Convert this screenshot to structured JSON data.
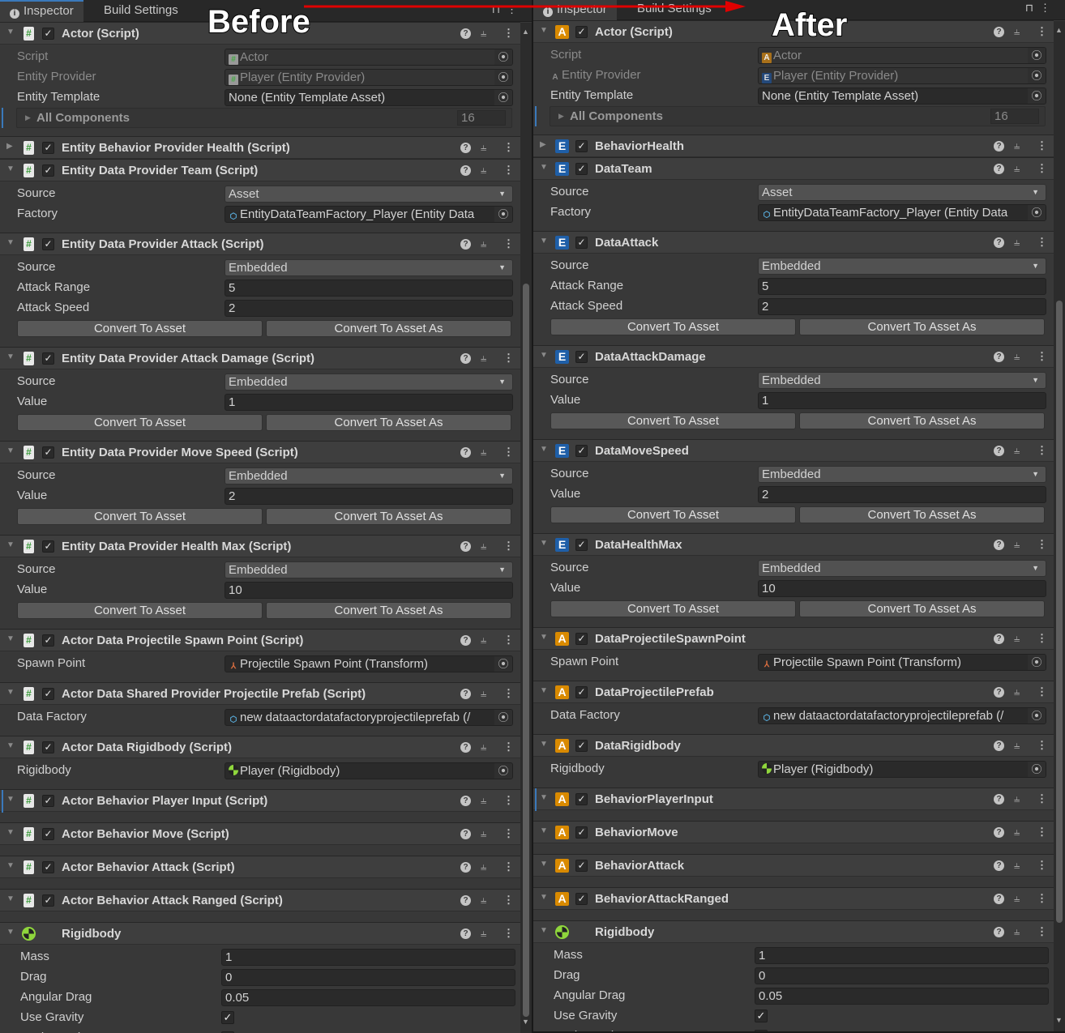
{
  "overlay": {
    "before": "Before",
    "after": "After",
    "arrow_color": "#e00000"
  },
  "panels": [
    {
      "tabs": [
        "Inspector",
        "Build Settings"
      ],
      "components": [
        {
          "title": "Actor (Script)",
          "icon": "script-icon",
          "expanded": true,
          "enabled": true,
          "rows": [
            {
              "type": "object",
              "label": "Script",
              "value": "Actor",
              "icon": "script-icon",
              "disabled": true
            },
            {
              "type": "object",
              "label": "Entity Provider",
              "value": "Player (Entity Provider)",
              "icon": "script-icon",
              "disabled": true
            },
            {
              "type": "object",
              "label": "Entity Template",
              "value": "None (Entity Template Asset)"
            },
            {
              "type": "foldout",
              "label": "All Components",
              "value": "16"
            }
          ]
        },
        {
          "title": "Entity Behavior Provider Health (Script)",
          "icon": "script-icon",
          "expanded": false,
          "enabled": true,
          "rows": []
        },
        {
          "title": "Entity Data Provider Team (Script)",
          "icon": "script-icon",
          "expanded": true,
          "enabled": true,
          "rows": [
            {
              "type": "dropdown",
              "label": "Source",
              "value": "Asset"
            },
            {
              "type": "object",
              "label": "Factory",
              "value": "EntityDataTeamFactory_Player (Entity Data",
              "icon": "prefab-icon"
            }
          ]
        },
        {
          "title": "Entity Data Provider Attack (Script)",
          "icon": "script-icon",
          "expanded": true,
          "enabled": true,
          "rows": [
            {
              "type": "dropdown",
              "label": "Source",
              "value": "Embedded"
            },
            {
              "type": "text",
              "label": "Attack Range",
              "value": "5"
            },
            {
              "type": "text",
              "label": "Attack Speed",
              "value": "2"
            },
            {
              "type": "buttons",
              "value": [
                "Convert To Asset",
                "Convert To Asset As"
              ]
            }
          ]
        },
        {
          "title": "Entity Data Provider Attack Damage (Script)",
          "icon": "script-icon",
          "expanded": true,
          "enabled": true,
          "rows": [
            {
              "type": "dropdown",
              "label": "Source",
              "value": "Embedded"
            },
            {
              "type": "text",
              "label": "Value",
              "value": "1"
            },
            {
              "type": "buttons",
              "value": [
                "Convert To Asset",
                "Convert To Asset As"
              ]
            }
          ]
        },
        {
          "title": "Entity Data Provider Move Speed (Script)",
          "icon": "script-icon",
          "expanded": true,
          "enabled": true,
          "rows": [
            {
              "type": "dropdown",
              "label": "Source",
              "value": "Embedded"
            },
            {
              "type": "text",
              "label": "Value",
              "value": "2"
            },
            {
              "type": "buttons",
              "value": [
                "Convert To Asset",
                "Convert To Asset As"
              ]
            }
          ]
        },
        {
          "title": "Entity Data Provider Health Max (Script)",
          "icon": "script-icon",
          "expanded": true,
          "enabled": true,
          "rows": [
            {
              "type": "dropdown",
              "label": "Source",
              "value": "Embedded"
            },
            {
              "type": "text",
              "label": "Value",
              "value": "10"
            },
            {
              "type": "buttons",
              "value": [
                "Convert To Asset",
                "Convert To Asset As"
              ]
            }
          ]
        },
        {
          "title": "Actor Data Projectile Spawn Point (Script)",
          "icon": "script-icon",
          "expanded": true,
          "enabled": true,
          "rows": [
            {
              "type": "object",
              "label": "Spawn Point",
              "value": "Projectile Spawn Point (Transform)",
              "icon": "transform-icon"
            }
          ]
        },
        {
          "title": "Actor Data Shared Provider Projectile Prefab (Script)",
          "icon": "script-icon",
          "expanded": true,
          "enabled": true,
          "rows": [
            {
              "type": "object",
              "label": "Data Factory",
              "value": "new dataactordatafactoryprojectileprefab (/",
              "icon": "prefab-icon"
            }
          ]
        },
        {
          "title": "Actor Data Rigidbody (Script)",
          "icon": "script-icon",
          "expanded": true,
          "enabled": true,
          "rows": [
            {
              "type": "object",
              "label": "Rigidbody",
              "value": "Player (Rigidbody)",
              "icon": "rigidbody-icon"
            }
          ]
        },
        {
          "title": "Actor Behavior Player Input (Script)",
          "icon": "script-icon",
          "expanded": true,
          "enabled": true,
          "selected": true,
          "rows": []
        },
        {
          "title": "Actor Behavior Move (Script)",
          "icon": "script-icon",
          "expanded": true,
          "enabled": true,
          "rows": []
        },
        {
          "title": "Actor Behavior Attack (Script)",
          "icon": "script-icon",
          "expanded": true,
          "enabled": true,
          "rows": []
        },
        {
          "title": "Actor Behavior Attack Ranged (Script)",
          "icon": "script-icon",
          "expanded": true,
          "enabled": true,
          "rows": []
        },
        {
          "title": "Rigidbody",
          "icon": "rigidbody-icon",
          "expanded": true,
          "rows": [
            {
              "type": "text",
              "label": "Mass",
              "value": "1"
            },
            {
              "type": "text",
              "label": "Drag",
              "value": "0"
            },
            {
              "type": "text",
              "label": "Angular Drag",
              "value": "0.05"
            },
            {
              "type": "checkbox",
              "label": "Use Gravity",
              "value": true
            },
            {
              "type": "checkbox",
              "label": "Is Kinematic",
              "value": false
            }
          ]
        }
      ]
    },
    {
      "tabs": [
        "Inspector",
        "Build Settings"
      ],
      "components": [
        {
          "title": "Actor (Script)",
          "icon": "actor-a-icon",
          "expanded": true,
          "enabled": true,
          "rows": [
            {
              "type": "object",
              "label": "Script",
              "value": "Actor",
              "icon": "actor-a-icon",
              "disabled": true
            },
            {
              "type": "object",
              "label": "Entity Provider",
              "label_icon": "actor-a-icon",
              "value": "Player (Entity Provider)",
              "icon": "entity-e-icon",
              "disabled": true
            },
            {
              "type": "object",
              "label": "Entity Template",
              "value": "None (Entity Template Asset)"
            },
            {
              "type": "foldout",
              "label": "All Components",
              "value": "16"
            }
          ]
        },
        {
          "title": "BehaviorHealth",
          "icon": "entity-e-icon",
          "expanded": false,
          "enabled": true,
          "rows": []
        },
        {
          "title": "DataTeam",
          "icon": "entity-e-icon",
          "expanded": true,
          "enabled": true,
          "rows": [
            {
              "type": "dropdown",
              "label": "Source",
              "value": "Asset"
            },
            {
              "type": "object",
              "label": "Factory",
              "value": "EntityDataTeamFactory_Player (Entity Data",
              "icon": "prefab-icon"
            }
          ]
        },
        {
          "title": "DataAttack",
          "icon": "entity-e-icon",
          "expanded": true,
          "enabled": true,
          "rows": [
            {
              "type": "dropdown",
              "label": "Source",
              "value": "Embedded"
            },
            {
              "type": "text",
              "label": "Attack Range",
              "value": "5"
            },
            {
              "type": "text",
              "label": "Attack Speed",
              "value": "2"
            },
            {
              "type": "buttons",
              "value": [
                "Convert To Asset",
                "Convert To Asset As"
              ]
            }
          ]
        },
        {
          "title": "DataAttackDamage",
          "icon": "entity-e-icon",
          "expanded": true,
          "enabled": true,
          "rows": [
            {
              "type": "dropdown",
              "label": "Source",
              "value": "Embedded"
            },
            {
              "type": "text",
              "label": "Value",
              "value": "1"
            },
            {
              "type": "buttons",
              "value": [
                "Convert To Asset",
                "Convert To Asset As"
              ]
            }
          ]
        },
        {
          "title": "DataMoveSpeed",
          "icon": "entity-e-icon",
          "expanded": true,
          "enabled": true,
          "rows": [
            {
              "type": "dropdown",
              "label": "Source",
              "value": "Embedded"
            },
            {
              "type": "text",
              "label": "Value",
              "value": "2"
            },
            {
              "type": "buttons",
              "value": [
                "Convert To Asset",
                "Convert To Asset As"
              ]
            }
          ]
        },
        {
          "title": "DataHealthMax",
          "icon": "entity-e-icon",
          "expanded": true,
          "enabled": true,
          "rows": [
            {
              "type": "dropdown",
              "label": "Source",
              "value": "Embedded"
            },
            {
              "type": "text",
              "label": "Value",
              "value": "10"
            },
            {
              "type": "buttons",
              "value": [
                "Convert To Asset",
                "Convert To Asset As"
              ]
            }
          ]
        },
        {
          "title": "DataProjectileSpawnPoint",
          "icon": "actor-a-icon",
          "expanded": true,
          "enabled": true,
          "rows": [
            {
              "type": "object",
              "label": "Spawn Point",
              "value": "Projectile Spawn Point (Transform)",
              "icon": "transform-icon"
            }
          ]
        },
        {
          "title": "DataProjectilePrefab",
          "icon": "actor-a-icon",
          "expanded": true,
          "enabled": true,
          "rows": [
            {
              "type": "object",
              "label": "Data Factory",
              "value": "new dataactordatafactoryprojectileprefab (/",
              "icon": "prefab-icon"
            }
          ]
        },
        {
          "title": "DataRigidbody",
          "icon": "actor-a-icon",
          "expanded": true,
          "enabled": true,
          "rows": [
            {
              "type": "object",
              "label": "Rigidbody",
              "value": "Player (Rigidbody)",
              "icon": "rigidbody-icon"
            }
          ]
        },
        {
          "title": "BehaviorPlayerInput",
          "icon": "actor-a-icon",
          "expanded": true,
          "enabled": true,
          "selected": true,
          "rows": []
        },
        {
          "title": "BehaviorMove",
          "icon": "actor-a-icon",
          "expanded": true,
          "enabled": true,
          "rows": []
        },
        {
          "title": "BehaviorAttack",
          "icon": "actor-a-icon",
          "expanded": true,
          "enabled": true,
          "rows": []
        },
        {
          "title": "BehaviorAttackRanged",
          "icon": "actor-a-icon",
          "expanded": true,
          "enabled": true,
          "rows": []
        },
        {
          "title": "Rigidbody",
          "icon": "rigidbody-icon",
          "expanded": true,
          "rows": [
            {
              "type": "text",
              "label": "Mass",
              "value": "1"
            },
            {
              "type": "text",
              "label": "Drag",
              "value": "0"
            },
            {
              "type": "text",
              "label": "Angular Drag",
              "value": "0.05"
            },
            {
              "type": "checkbox",
              "label": "Use Gravity",
              "value": true
            },
            {
              "type": "checkbox",
              "label": "Is Kinematic",
              "value": false
            }
          ]
        }
      ]
    }
  ]
}
